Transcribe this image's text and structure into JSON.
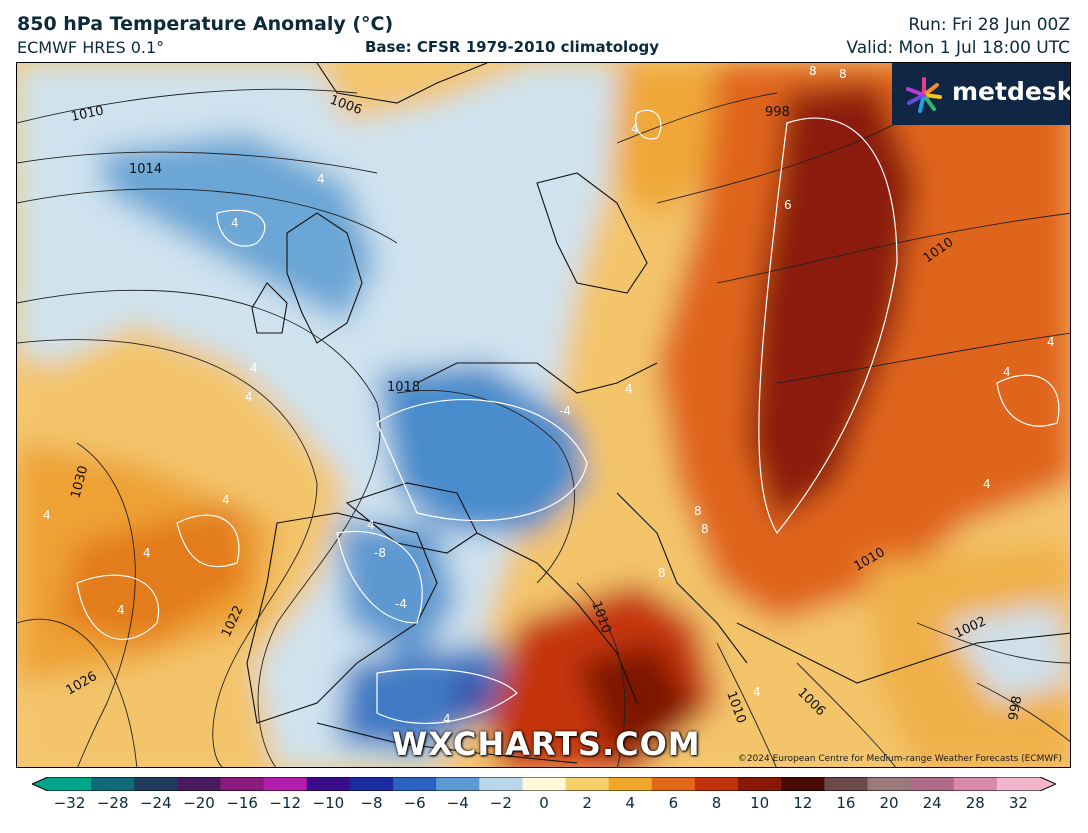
{
  "header": {
    "title": "850 hPa Temperature Anomaly (°C)",
    "subtitle": "ECMWF HRES 0.1°",
    "base": "Base: CFSR 1979-2010 climatology",
    "run": "Run: Fri 28 Jun 00Z",
    "valid": "Valid: Mon 1 Jul 18:00 UTC"
  },
  "logo": {
    "text": "metdesk"
  },
  "watermark": "WXCHARTS.COM",
  "copyright": "©2024 European Centre for Medium-range Weather Forecasts (ECMWF)",
  "map": {
    "isobar_labels": [
      "1010",
      "1006",
      "1014",
      "998",
      "1010",
      "1018",
      "1030",
      "1022",
      "1026",
      "1010",
      "1010",
      "1010",
      "1006",
      "1002",
      "998"
    ],
    "anomaly_labels": [
      "4",
      "4",
      "8",
      "8",
      "4",
      "6",
      "4",
      "4",
      "4",
      "4",
      "4",
      "-8",
      "-4",
      "4",
      "4",
      "4",
      "8",
      "8",
      "8",
      "4",
      "4",
      "4",
      "4",
      "-4",
      "4"
    ]
  },
  "colorbar": {
    "ticks": [
      "−32",
      "−28",
      "−24",
      "−20",
      "−16",
      "−12",
      "−10",
      "−8",
      "−6",
      "−4",
      "−2",
      "0",
      "2",
      "4",
      "6",
      "8",
      "10",
      "12",
      "16",
      "20",
      "24",
      "28",
      "32"
    ],
    "colors": [
      "#00a58a",
      "#0f6b7a",
      "#1f3a5a",
      "#4b1a5e",
      "#8a1a7e",
      "#b21dae",
      "#3a0e8a",
      "#1a2aa0",
      "#2a62c2",
      "#5b9ad4",
      "#b9d6ea",
      "#fff8d8",
      "#f7d06a",
      "#f0a628",
      "#e2671a",
      "#c2330c",
      "#8a1806",
      "#4a0a04",
      "#6a4a4a",
      "#9a7a7a",
      "#b06a8a",
      "#d88aa8",
      "#f2b5cc"
    ]
  }
}
